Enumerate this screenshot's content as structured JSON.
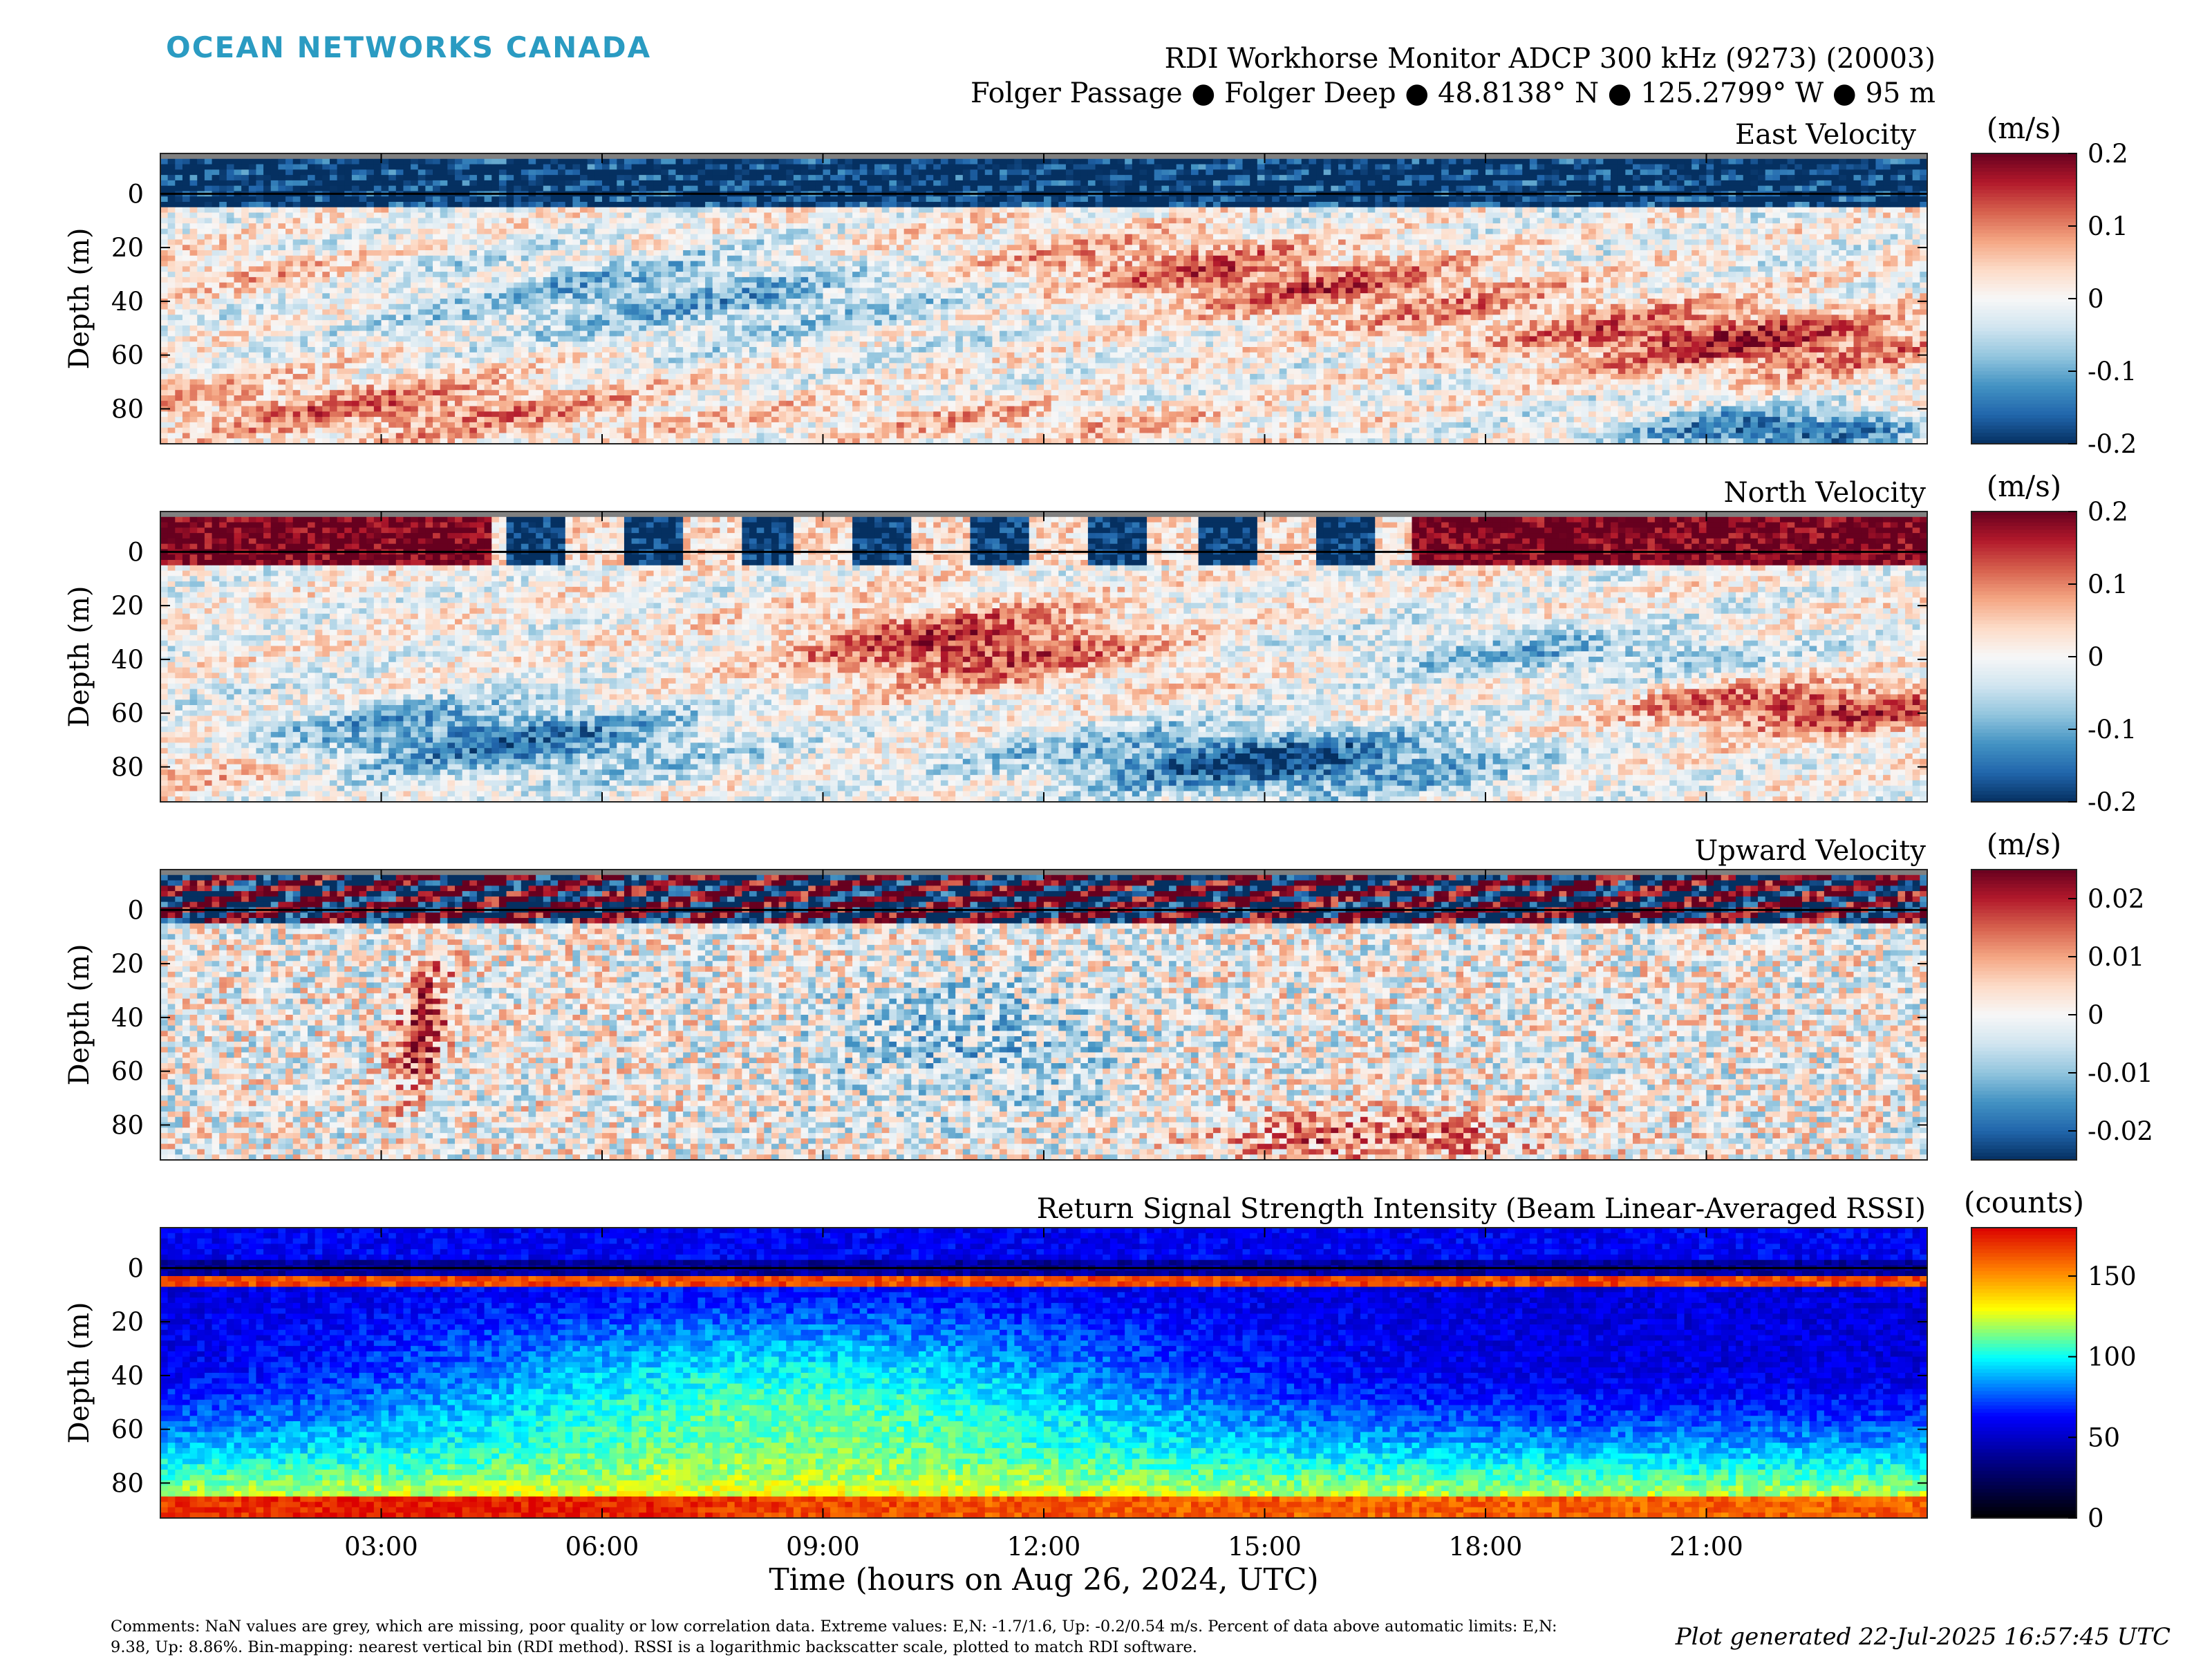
{
  "header": {
    "logo": "OCEAN NETWORKS CANADA",
    "title_line1": "RDI Workhorse Monitor ADCP 300 kHz (9273) (20003)",
    "title_line2": "Folger Passage ● Folger Deep ● 48.8138° N ● 125.2799° W ● 95 m"
  },
  "chart_data": [
    {
      "type": "heatmap",
      "title": "East Velocity",
      "ylabel": "Depth (m)",
      "yticks": [
        0,
        20,
        40,
        60,
        80
      ],
      "ylim": [
        -15,
        93
      ],
      "colorbar_label": "(m/s)",
      "colormap": "red-white-blue",
      "clim": [
        -0.2,
        0.2
      ],
      "cticks": [
        0.2,
        0.1,
        0,
        -0.1,
        -0.2
      ],
      "ctick_labels": [
        "0.2",
        "0.1",
        "0",
        "-0.1",
        "-0.2"
      ],
      "description_regions": [
        {
          "t_hours": [
            0,
            6
          ],
          "depth_m": [
            50,
            90
          ],
          "value": 0.08
        },
        {
          "t_hours": [
            2,
            11
          ],
          "depth_m": [
            15,
            50
          ],
          "value": -0.08
        },
        {
          "t_hours": [
            12,
            18
          ],
          "depth_m": [
            15,
            50
          ],
          "value": 0.1
        },
        {
          "t_hours": [
            18,
            24
          ],
          "depth_m": [
            40,
            70
          ],
          "value": 0.16
        },
        {
          "t_hours": [
            21,
            24
          ],
          "depth_m": [
            75,
            93
          ],
          "value": -0.15
        }
      ]
    },
    {
      "type": "heatmap",
      "title": "North Velocity",
      "ylabel": "Depth (m)",
      "yticks": [
        0,
        20,
        40,
        60,
        80
      ],
      "ylim": [
        -15,
        93
      ],
      "colorbar_label": "(m/s)",
      "colormap": "red-white-blue",
      "clim": [
        -0.2,
        0.2
      ],
      "cticks": [
        0.2,
        0.1,
        0,
        -0.1,
        -0.2
      ],
      "ctick_labels": [
        "0.2",
        "0.1",
        "0",
        "-0.1",
        "-0.2"
      ],
      "description_regions": [
        {
          "t_hours": [
            1,
            8
          ],
          "depth_m": [
            55,
            90
          ],
          "value": -0.14
        },
        {
          "t_hours": [
            8,
            13
          ],
          "depth_m": [
            15,
            60
          ],
          "value": 0.14
        },
        {
          "t_hours": [
            13,
            17
          ],
          "depth_m": [
            55,
            93
          ],
          "value": -0.18
        },
        {
          "t_hours": [
            20,
            24
          ],
          "depth_m": [
            45,
            70
          ],
          "value": 0.15
        }
      ]
    },
    {
      "type": "heatmap",
      "title": "Upward Velocity",
      "ylabel": "Depth (m)",
      "yticks": [
        0,
        20,
        40,
        60,
        80
      ],
      "ylim": [
        -15,
        93
      ],
      "colorbar_label": "(m/s)",
      "colormap": "red-white-blue",
      "clim": [
        -0.025,
        0.025
      ],
      "cticks": [
        0.02,
        0.01,
        0,
        -0.01,
        -0.02
      ],
      "ctick_labels": [
        "0.02",
        "0.01",
        "0",
        "-0.01",
        "-0.02"
      ],
      "description_regions": [
        {
          "t_hours": [
            3.2,
            4.2
          ],
          "depth_m": [
            5,
            70
          ],
          "value": 0.018
        },
        {
          "t_hours": [
            14.5,
            18
          ],
          "depth_m": [
            70,
            93
          ],
          "value": 0.012
        }
      ]
    },
    {
      "type": "heatmap",
      "title": "Return Signal Strength Intensity (Beam Linear-Averaged RSSI)",
      "xlabel": "Time (hours on Aug 26, 2024, UTC)",
      "ylabel": "Depth (m)",
      "xticks": [
        "03:00",
        "06:00",
        "09:00",
        "12:00",
        "15:00",
        "18:00",
        "21:00"
      ],
      "xlim_hours": [
        0,
        24
      ],
      "yticks": [
        0,
        20,
        40,
        60,
        80
      ],
      "ylim": [
        -15,
        93
      ],
      "colorbar_label": "(counts)",
      "colormap": "jet",
      "clim": [
        0,
        180
      ],
      "cticks": [
        150,
        100,
        50,
        0
      ],
      "ctick_labels": [
        "150",
        "100",
        "50",
        "0"
      ],
      "description_regions": [
        {
          "t_hours": [
            0,
            24
          ],
          "depth_m": [
            80,
            93
          ],
          "value": 165
        },
        {
          "t_hours": [
            3,
            14
          ],
          "depth_m": [
            20,
            70
          ],
          "value": 100
        },
        {
          "t_hours": [
            0,
            24
          ],
          "depth_m": [
            5,
            40
          ],
          "value": 55
        }
      ]
    }
  ],
  "footer": {
    "comments": "Comments: NaN values are grey, which are missing, poor quality or low correlation data. Extreme values: E,N: -1.7/1.6, Up: -0.2/0.54 m/s. Percent of data above automatic limits: E,N: 9.38, Up: 8.86%. Bin-mapping: nearest vertical bin (RDI method). RSSI is a logarithmic backscatter scale, plotted to match RDI software.",
    "generated": "Plot generated 22-Jul-2025 16:57:45 UTC"
  }
}
